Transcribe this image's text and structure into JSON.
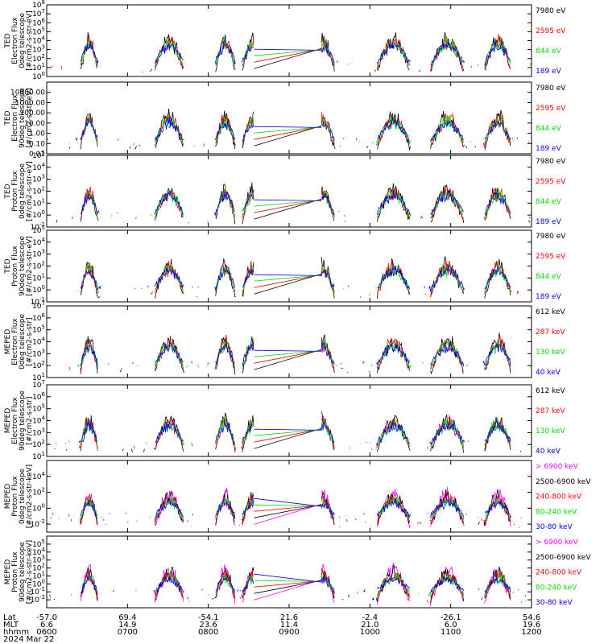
{
  "chart_data": [
    {
      "type": "line",
      "ylabel": [
        "TED",
        "Electron Flux",
        "0deg telescope",
        "[#/cm2-s-str-eV]"
      ],
      "yscale": "log",
      "ylim": [
        1,
        100000000
      ],
      "yticks": [
        {
          "v": 1,
          "m": 0
        },
        {
          "v": 10,
          "m": 1
        },
        {
          "v": 100,
          "m": 2
        },
        {
          "v": 1000,
          "m": 3
        },
        {
          "v": 10000,
          "m": 4
        },
        {
          "v": 100000,
          "m": 5
        },
        {
          "v": 1000000,
          "m": 6
        },
        {
          "v": 10000000,
          "m": 7
        },
        {
          "v": 100000000,
          "m": 8
        }
      ],
      "yticklabel_style": "power",
      "series": [
        {
          "name": "7980 eV",
          "color": "#000000"
        },
        {
          "name": "2595 eV",
          "color": "#ff0000"
        },
        {
          "name": "844 eV",
          "color": "#00ff00"
        },
        {
          "name": "189 eV",
          "color": "#0000ff"
        }
      ]
    },
    {
      "type": "line",
      "ylabel": [
        "TED",
        "Electron Flux",
        "90deg telescope",
        "[#/cm2-s-str-eV]"
      ],
      "yscale": "log",
      "ylim": [
        0.01,
        100000
      ],
      "yticks": [
        {
          "v": 0.01,
          "t": "0.01"
        },
        {
          "v": 0.1,
          "t": "0.10"
        },
        {
          "v": 1,
          "t": "1.00"
        },
        {
          "v": 10,
          "t": "10.00"
        },
        {
          "v": 100,
          "t": "100.00"
        },
        {
          "v": 1000,
          "t": "1000.00"
        },
        {
          "v": 10000,
          "t": "10000.00"
        }
      ],
      "yticklabel_style": "decimal",
      "series": [
        {
          "name": "7980 eV",
          "color": "#000000"
        },
        {
          "name": "2595 eV",
          "color": "#ff0000"
        },
        {
          "name": "844 eV",
          "color": "#00ff00"
        },
        {
          "name": "189 eV",
          "color": "#0000ff"
        }
      ]
    },
    {
      "type": "line",
      "ylabel": [
        "TED",
        "Proton Flux",
        "0deg telescope",
        "[#/cm2-s-str-eV]"
      ],
      "yscale": "log",
      "ylim": [
        0.1,
        100000
      ],
      "yticks": [
        {
          "v": 0.1,
          "m": -1
        },
        {
          "v": 1,
          "m": 0
        },
        {
          "v": 10,
          "m": 1
        },
        {
          "v": 100,
          "m": 2
        },
        {
          "v": 1000,
          "m": 3
        },
        {
          "v": 10000,
          "m": 4
        },
        {
          "v": 100000,
          "m": 5
        }
      ],
      "yticklabel_style": "power",
      "series": [
        {
          "name": "7980 eV",
          "color": "#000000"
        },
        {
          "name": "2595 eV",
          "color": "#ff0000"
        },
        {
          "name": "844 eV",
          "color": "#00ff00"
        },
        {
          "name": "189 eV",
          "color": "#0000ff"
        }
      ]
    },
    {
      "type": "line",
      "ylabel": [
        "TED",
        "Proton Flux",
        "90deg telescope",
        "[#/cm2-s-str-eV]"
      ],
      "yscale": "log",
      "ylim": [
        0.1,
        100000
      ],
      "yticks": [
        {
          "v": 0.1,
          "m": -1
        },
        {
          "v": 1,
          "m": 0
        },
        {
          "v": 10,
          "m": 1
        },
        {
          "v": 100,
          "m": 2
        },
        {
          "v": 1000,
          "m": 3
        },
        {
          "v": 10000,
          "m": 4
        },
        {
          "v": 100000,
          "m": 5
        }
      ],
      "yticklabel_style": "power",
      "series": [
        {
          "name": "7980 eV",
          "color": "#000000"
        },
        {
          "name": "2595 eV",
          "color": "#ff0000"
        },
        {
          "name": "844 eV",
          "color": "#00ff00"
        },
        {
          "name": "189 eV",
          "color": "#0000ff"
        }
      ]
    },
    {
      "type": "line",
      "ylabel": [
        "MEPED",
        "Electron Flux",
        "0deg telescope",
        "[#/cm2-s-str]"
      ],
      "yscale": "log",
      "ylim": [
        10,
        10000000
      ],
      "yticks": [
        {
          "v": 10,
          "m": 1
        },
        {
          "v": 100,
          "m": 2
        },
        {
          "v": 1000,
          "m": 3
        },
        {
          "v": 10000,
          "m": 4
        },
        {
          "v": 100000,
          "m": 5
        },
        {
          "v": 1000000,
          "m": 6
        },
        {
          "v": 10000000,
          "m": 7
        }
      ],
      "yticklabel_style": "power",
      "series": [
        {
          "name": "612 keV",
          "color": "#000000"
        },
        {
          "name": "287 keV",
          "color": "#ff0000"
        },
        {
          "name": "130 keV",
          "color": "#00ff00"
        },
        {
          "name": "40 keV",
          "color": "#0000ff"
        }
      ]
    },
    {
      "type": "line",
      "ylabel": [
        "MEPED",
        "Electron Flux",
        "90deg telescope",
        "[#/cm2-s-str]"
      ],
      "yscale": "log",
      "ylim": [
        10,
        10000000
      ],
      "yticks": [
        {
          "v": 10,
          "m": 1
        },
        {
          "v": 100,
          "m": 2
        },
        {
          "v": 1000,
          "m": 3
        },
        {
          "v": 10000,
          "m": 4
        },
        {
          "v": 100000,
          "m": 5
        },
        {
          "v": 1000000,
          "m": 6
        },
        {
          "v": 10000000,
          "m": 7
        }
      ],
      "yticklabel_style": "power",
      "series": [
        {
          "name": "612 keV",
          "color": "#000000"
        },
        {
          "name": "287 keV",
          "color": "#ff0000"
        },
        {
          "name": "130 keV",
          "color": "#00ff00"
        },
        {
          "name": "40 keV",
          "color": "#0000ff"
        }
      ]
    },
    {
      "type": "line",
      "ylabel": [
        "MEPED",
        "Proton Flux",
        "0deg telescope",
        "[#/cm2-s-str-keV]"
      ],
      "yscale": "log",
      "ylim": [
        0.001,
        1000000
      ],
      "yticks": [
        {
          "v": 0.01,
          "m": -2
        },
        {
          "v": 1,
          "m": 0
        },
        {
          "v": 100,
          "m": 2
        },
        {
          "v": 10000,
          "m": 4
        }
      ],
      "yticklabel_style": "power",
      "series": [
        {
          "name": "> 6900 keV",
          "color": "#ff00ff"
        },
        {
          "name": "2500-6900 keV",
          "color": "#000000"
        },
        {
          "name": "240-800 keV",
          "color": "#ff0000"
        },
        {
          "name": "80-240 keV",
          "color": "#00ff00"
        },
        {
          "name": "30-80 keV",
          "color": "#0000ff"
        }
      ]
    },
    {
      "type": "line",
      "ylabel": [
        "MEPED",
        "Proton Flux",
        "90deg telescope",
        "[#/cm2-s-str-keV]"
      ],
      "yscale": "log",
      "ylim": [
        0.001,
        1000000
      ],
      "yticks": [
        {
          "v": 0.01,
          "m": -2
        },
        {
          "v": 0.1,
          "m": -1
        },
        {
          "v": 1,
          "m": 0
        },
        {
          "v": 10,
          "m": 1
        },
        {
          "v": 100,
          "m": 2
        },
        {
          "v": 1000,
          "m": 3
        },
        {
          "v": 10000,
          "m": 4
        },
        {
          "v": 100000,
          "m": 5
        }
      ],
      "yticklabel_style": "power",
      "series": [
        {
          "name": "> 6900 keV",
          "color": "#ff00ff"
        },
        {
          "name": "2500-6900 keV",
          "color": "#000000"
        },
        {
          "name": "240-800 keV",
          "color": "#ff0000"
        },
        {
          "name": "80-240 keV",
          "color": "#00ff00"
        },
        {
          "name": "30-80 keV",
          "color": "#0000ff"
        }
      ]
    }
  ],
  "x_axis": {
    "row_labels": [
      "Lat",
      "MLT",
      "hhmm",
      "2024 Mar 22"
    ],
    "ticks": [
      {
        "lat": "-57.0",
        "mlt": "6.6",
        "hhmm": "0600"
      },
      {
        "lat": "69.4",
        "mlt": "14.9",
        "hhmm": "0700"
      },
      {
        "lat": "-54.1",
        "mlt": "23.6",
        "hhmm": "0800"
      },
      {
        "lat": "21.6",
        "mlt": "11.4",
        "hhmm": "0900"
      },
      {
        "lat": "-2.4",
        "mlt": "21.0",
        "hhmm": "1000"
      },
      {
        "lat": "-26.1",
        "mlt": "6.0",
        "hhmm": "1100"
      },
      {
        "lat": "54.6",
        "mlt": "19.6",
        "hhmm": "1200"
      }
    ]
  },
  "data_gap": {
    "start_hhmm": "0834",
    "end_hhmm": "0924"
  },
  "colors": {
    "background": "#ffffff",
    "axes": "#000000"
  }
}
